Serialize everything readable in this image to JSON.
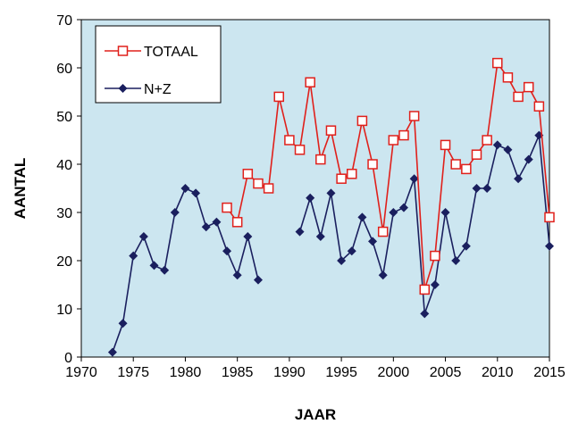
{
  "chart_data": {
    "type": "line",
    "xlabel": "JAAR",
    "ylabel": "AANTAL",
    "xlim": [
      1970,
      2015
    ],
    "ylim": [
      0,
      70
    ],
    "x_ticks": [
      1970,
      1975,
      1980,
      1985,
      1990,
      1995,
      2000,
      2005,
      2010,
      2015
    ],
    "y_ticks": [
      0,
      10,
      20,
      30,
      40,
      50,
      60,
      70
    ],
    "grid": false,
    "legend_position": "top-left",
    "plot_background": "#CCE6F0",
    "series": [
      {
        "name": "TOTAAL",
        "color": "#E0201B",
        "marker": "open-square",
        "x": [
          1984,
          1985,
          1986,
          1987,
          1988,
          1989,
          1990,
          1991,
          1992,
          1993,
          1994,
          1995,
          1996,
          1997,
          1998,
          1999,
          2000,
          2001,
          2002,
          2003,
          2004,
          2005,
          2006,
          2007,
          2008,
          2009,
          2010,
          2011,
          2012,
          2013,
          2014,
          2015
        ],
        "values": [
          31,
          28,
          38,
          36,
          35,
          54,
          45,
          43,
          57,
          41,
          47,
          37,
          38,
          49,
          40,
          26,
          45,
          46,
          50,
          14,
          21,
          44,
          40,
          39,
          42,
          45,
          61,
          58,
          54,
          56,
          52,
          29
        ]
      },
      {
        "name": "N+Z",
        "color": "#1A1F5E",
        "marker": "filled-diamond",
        "segments": [
          {
            "x": [
              1973,
              1974,
              1975,
              1976,
              1977,
              1978,
              1979,
              1980,
              1981,
              1982,
              1983,
              1984,
              1985,
              1986,
              1987
            ],
            "values": [
              1,
              7,
              21,
              25,
              19,
              18,
              30,
              35,
              34,
              27,
              28,
              22,
              17,
              25,
              16
            ]
          },
          {
            "x": [
              1991,
              1992,
              1993,
              1994,
              1995,
              1996,
              1997,
              1998,
              1999,
              2000,
              2001,
              2002,
              2003,
              2004,
              2005,
              2006,
              2007,
              2008,
              2009,
              2010,
              2011,
              2012,
              2013,
              2014,
              2015
            ],
            "values": [
              26,
              33,
              25,
              34,
              20,
              22,
              29,
              24,
              17,
              30,
              31,
              37,
              9,
              15,
              30,
              20,
              23,
              35,
              35,
              44,
              43,
              37,
              41,
              46,
              23
            ]
          }
        ]
      }
    ]
  }
}
